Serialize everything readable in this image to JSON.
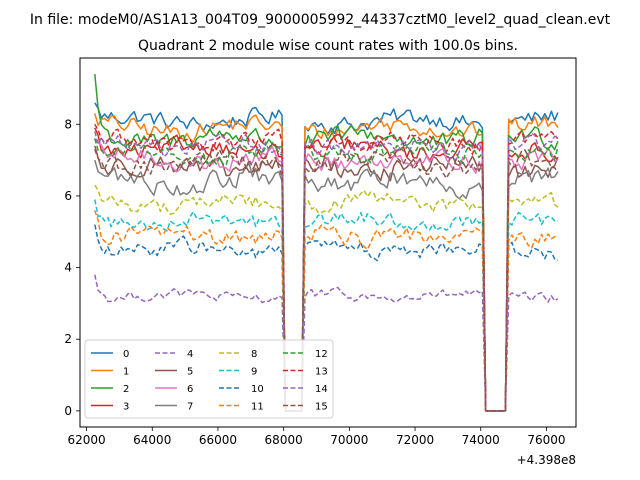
{
  "figure": {
    "suptitle": "In file: modeM0/AS1A13_004T09_9000005992_44337cztM0_level2_quad_clean.evt",
    "offset_label": "+4.398e8"
  },
  "chart_data": {
    "type": "line",
    "title": "Quadrant 2 module wise count rates with 100.0s bins.",
    "xlabel": "",
    "ylabel": "",
    "x_offset": 439800000,
    "xlim": [
      61800,
      76900
    ],
    "ylim": [
      -0.45,
      9.85
    ],
    "xticks": [
      62000,
      64000,
      66000,
      68000,
      70000,
      72000,
      74000,
      76000
    ],
    "xtick_labels": [
      "62000",
      "64000",
      "66000",
      "68000",
      "70000",
      "72000",
      "74000",
      "76000"
    ],
    "yticks": [
      0,
      2,
      4,
      6,
      8
    ],
    "ytick_labels": [
      "0",
      "2",
      "4",
      "6",
      "8"
    ],
    "grid": false,
    "legend_position": "lower-left",
    "legend_columns": 4,
    "bin_seconds": 100,
    "x_start": 62250,
    "x_end": 76350,
    "data_gaps": [
      {
        "start": 68050,
        "end": 68550,
        "value": 0.0
      },
      {
        "start": 74150,
        "end": 74750,
        "value": 0.0
      }
    ],
    "series": [
      {
        "name": "0",
        "color": "#1f77b4",
        "dash": "solid",
        "mean": 8.1,
        "noise": 0.35,
        "start": 8.6
      },
      {
        "name": "1",
        "color": "#ff7f0e",
        "dash": "solid",
        "mean": 7.9,
        "noise": 0.35,
        "start": 8.3
      },
      {
        "name": "2",
        "color": "#2ca02c",
        "dash": "solid",
        "mean": 7.6,
        "noise": 0.4,
        "start": 9.4
      },
      {
        "name": "3",
        "color": "#d62728",
        "dash": "solid",
        "mean": 7.3,
        "noise": 0.35,
        "start": 7.9
      },
      {
        "name": "4",
        "color": "#9467bd",
        "dash": "dashed",
        "mean": 3.2,
        "noise": 0.2,
        "start": 3.8
      },
      {
        "name": "5",
        "color": "#8c564b",
        "dash": "solid",
        "mean": 6.8,
        "noise": 0.4,
        "start": 7.4
      },
      {
        "name": "6",
        "color": "#e377c2",
        "dash": "solid",
        "mean": 7.0,
        "noise": 0.35,
        "start": 7.6
      },
      {
        "name": "7",
        "color": "#7f7f7f",
        "dash": "solid",
        "mean": 6.4,
        "noise": 0.4,
        "start": 7.0
      },
      {
        "name": "8",
        "color": "#bcbd22",
        "dash": "dashed",
        "mean": 5.8,
        "noise": 0.3,
        "start": 6.3
      },
      {
        "name": "9",
        "color": "#17becf",
        "dash": "dashed",
        "mean": 5.3,
        "noise": 0.3,
        "start": 5.9
      },
      {
        "name": "10",
        "color": "#1f77b4",
        "dash": "dashed",
        "mean": 4.5,
        "noise": 0.3,
        "start": 5.2
      },
      {
        "name": "11",
        "color": "#ff7f0e",
        "dash": "dashed",
        "mean": 4.9,
        "noise": 0.35,
        "start": 5.6
      },
      {
        "name": "12",
        "color": "#2ca02c",
        "dash": "dashed",
        "mean": 7.2,
        "noise": 0.35,
        "start": 7.6
      },
      {
        "name": "13",
        "color": "#d62728",
        "dash": "dashed",
        "mean": 7.5,
        "noise": 0.35,
        "start": 8.0
      },
      {
        "name": "14",
        "color": "#9467bd",
        "dash": "dashed",
        "mean": 7.4,
        "noise": 0.35,
        "start": 7.8
      },
      {
        "name": "15",
        "color": "#8c564b",
        "dash": "dashed",
        "mean": 6.9,
        "noise": 0.4,
        "start": 7.3
      }
    ]
  }
}
